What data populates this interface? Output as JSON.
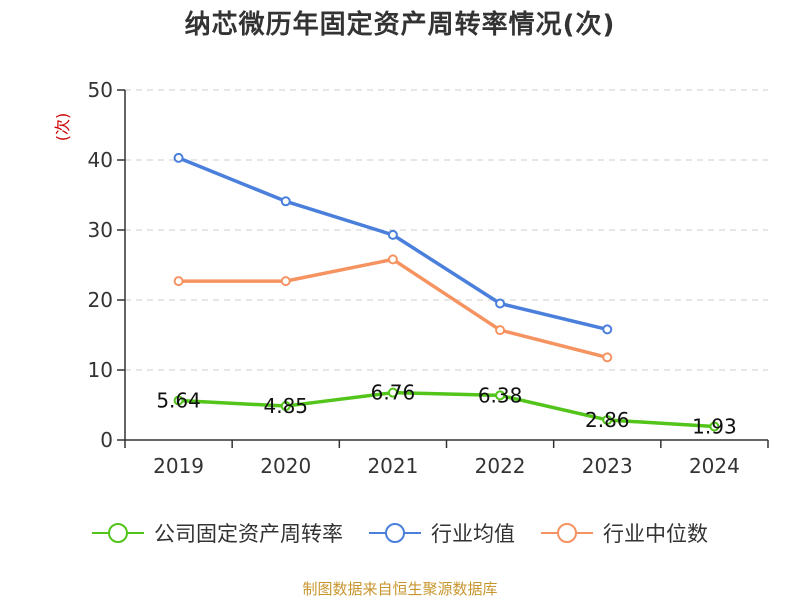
{
  "title": "纳芯微历年固定资产周转率情况(次)",
  "source": "制图数据来自恒生聚源数据库",
  "colors": {
    "axis": "#333333",
    "grid": "#cccccc",
    "ylabel": "#cc0000"
  },
  "chart_data": {
    "type": "line",
    "title": "纳芯微历年固定资产周转率情况(次)",
    "xlabel": "",
    "ylabel": "(次)",
    "categories": [
      "2019",
      "2020",
      "2021",
      "2022",
      "2023",
      "2024"
    ],
    "ylim": [
      0,
      50
    ],
    "yticks": [
      0,
      10,
      20,
      30,
      40,
      50
    ],
    "grid": true,
    "legend_position": "bottom",
    "series": [
      {
        "name": "公司固定资产周转率",
        "color": "#52c41a",
        "values": [
          5.64,
          4.85,
          6.76,
          6.38,
          2.86,
          1.93
        ],
        "labels": [
          "5.64",
          "4.85",
          "6.76",
          "6.38",
          "2.86",
          "1.93"
        ]
      },
      {
        "name": "行业均值",
        "color": "#4a7fdc",
        "values": [
          40.3,
          34.1,
          29.3,
          19.5,
          15.8,
          null
        ]
      },
      {
        "name": "行业中位数",
        "color": "#f59361",
        "values": [
          22.7,
          22.7,
          25.8,
          15.7,
          11.8,
          null
        ]
      }
    ]
  }
}
